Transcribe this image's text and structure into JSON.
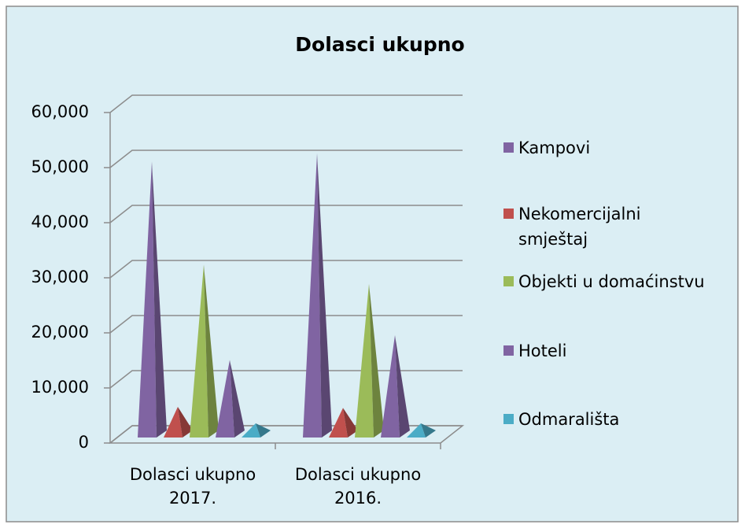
{
  "chart_data": {
    "type": "pyramid3d",
    "title": "Dolasci ukupno",
    "categories": [
      "Dolasci ukupno 2017.",
      "Dolasci ukupno 2016."
    ],
    "series": [
      {
        "name": "Kampovi",
        "color": "#8064a2",
        "values": [
          49500,
          51000
        ]
      },
      {
        "name": "Nekomercijalni smještaj",
        "color": "#c0504d",
        "values": [
          5000,
          4800
        ]
      },
      {
        "name": "Objekti u domaćinstvu",
        "color": "#9bbb59",
        "values": [
          30800,
          27300
        ]
      },
      {
        "name": "Hoteli",
        "color": "#8064a2",
        "values": [
          13500,
          18000
        ]
      },
      {
        "name": "Odmarališta",
        "color": "#4bacc6",
        "values": [
          2000,
          2000
        ]
      }
    ],
    "ylim": [
      0,
      60000
    ],
    "yticks": [
      0,
      {
        "value": 10000,
        "label": "10,000"
      },
      {
        "value": 20000,
        "label": "20,000"
      },
      {
        "value": 30000,
        "label": "30,000"
      },
      {
        "value": 40000,
        "label": "40,000"
      },
      {
        "value": 50000,
        "label": "50,000"
      },
      {
        "value": 60000,
        "label": "60,000"
      }
    ],
    "grid": true,
    "legend": "right"
  }
}
